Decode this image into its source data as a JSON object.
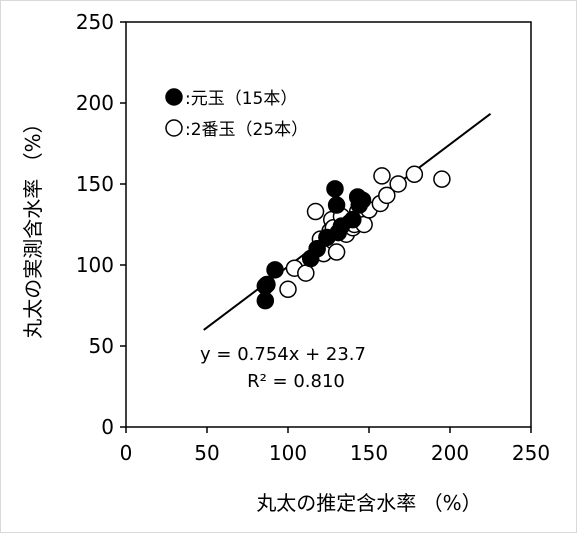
{
  "chart_data": {
    "type": "scatter",
    "xlabel": "丸太の推定含水率 （%）",
    "ylabel": "丸太の実測含水率 （%）",
    "xlim": [
      0,
      250
    ],
    "ylim": [
      0,
      250
    ],
    "x_ticks": [
      "0",
      "50",
      "100",
      "150",
      "200",
      "250"
    ],
    "y_ticks": [
      "0",
      "50",
      "100",
      "150",
      "200",
      "250"
    ],
    "grid": false,
    "legend_position": "top-left",
    "series": [
      {
        "name": "元玉（15本）",
        "legend_label": ":元玉（15本）",
        "marker": "filled-circle",
        "color": "#000000",
        "points": [
          [
            86,
            78
          ],
          [
            86,
            87
          ],
          [
            87,
            88
          ],
          [
            92,
            97
          ],
          [
            114,
            104
          ],
          [
            118,
            110
          ],
          [
            124,
            117
          ],
          [
            129,
            147
          ],
          [
            130,
            137
          ],
          [
            131,
            120
          ],
          [
            133,
            124
          ],
          [
            140,
            128
          ],
          [
            143,
            142
          ],
          [
            144,
            137
          ],
          [
            146,
            140
          ]
        ]
      },
      {
        "name": "2番玉（25本）",
        "legend_label": ":2番玉（25本）",
        "marker": "open-circle",
        "color": "#000000",
        "points": [
          [
            100,
            85
          ],
          [
            104,
            98
          ],
          [
            111,
            95
          ],
          [
            117,
            133
          ],
          [
            118,
            110
          ],
          [
            120,
            116
          ],
          [
            122,
            107
          ],
          [
            126,
            121
          ],
          [
            127,
            128
          ],
          [
            128,
            123
          ],
          [
            130,
            108
          ],
          [
            133,
            130
          ],
          [
            136,
            119
          ],
          [
            138,
            126
          ],
          [
            140,
            123
          ],
          [
            141,
            125
          ],
          [
            143,
            133
          ],
          [
            147,
            125
          ],
          [
            150,
            134
          ],
          [
            157,
            138
          ],
          [
            158,
            155
          ],
          [
            161,
            143
          ],
          [
            168,
            150
          ],
          [
            178,
            156
          ],
          [
            195,
            153
          ]
        ]
      }
    ],
    "regression": {
      "x_range": [
        48,
        225
      ],
      "slope": 0.754,
      "intercept": 23.7,
      "equation": "y = 0.754x + 23.7",
      "r2_label": "R² = 0.810"
    }
  }
}
